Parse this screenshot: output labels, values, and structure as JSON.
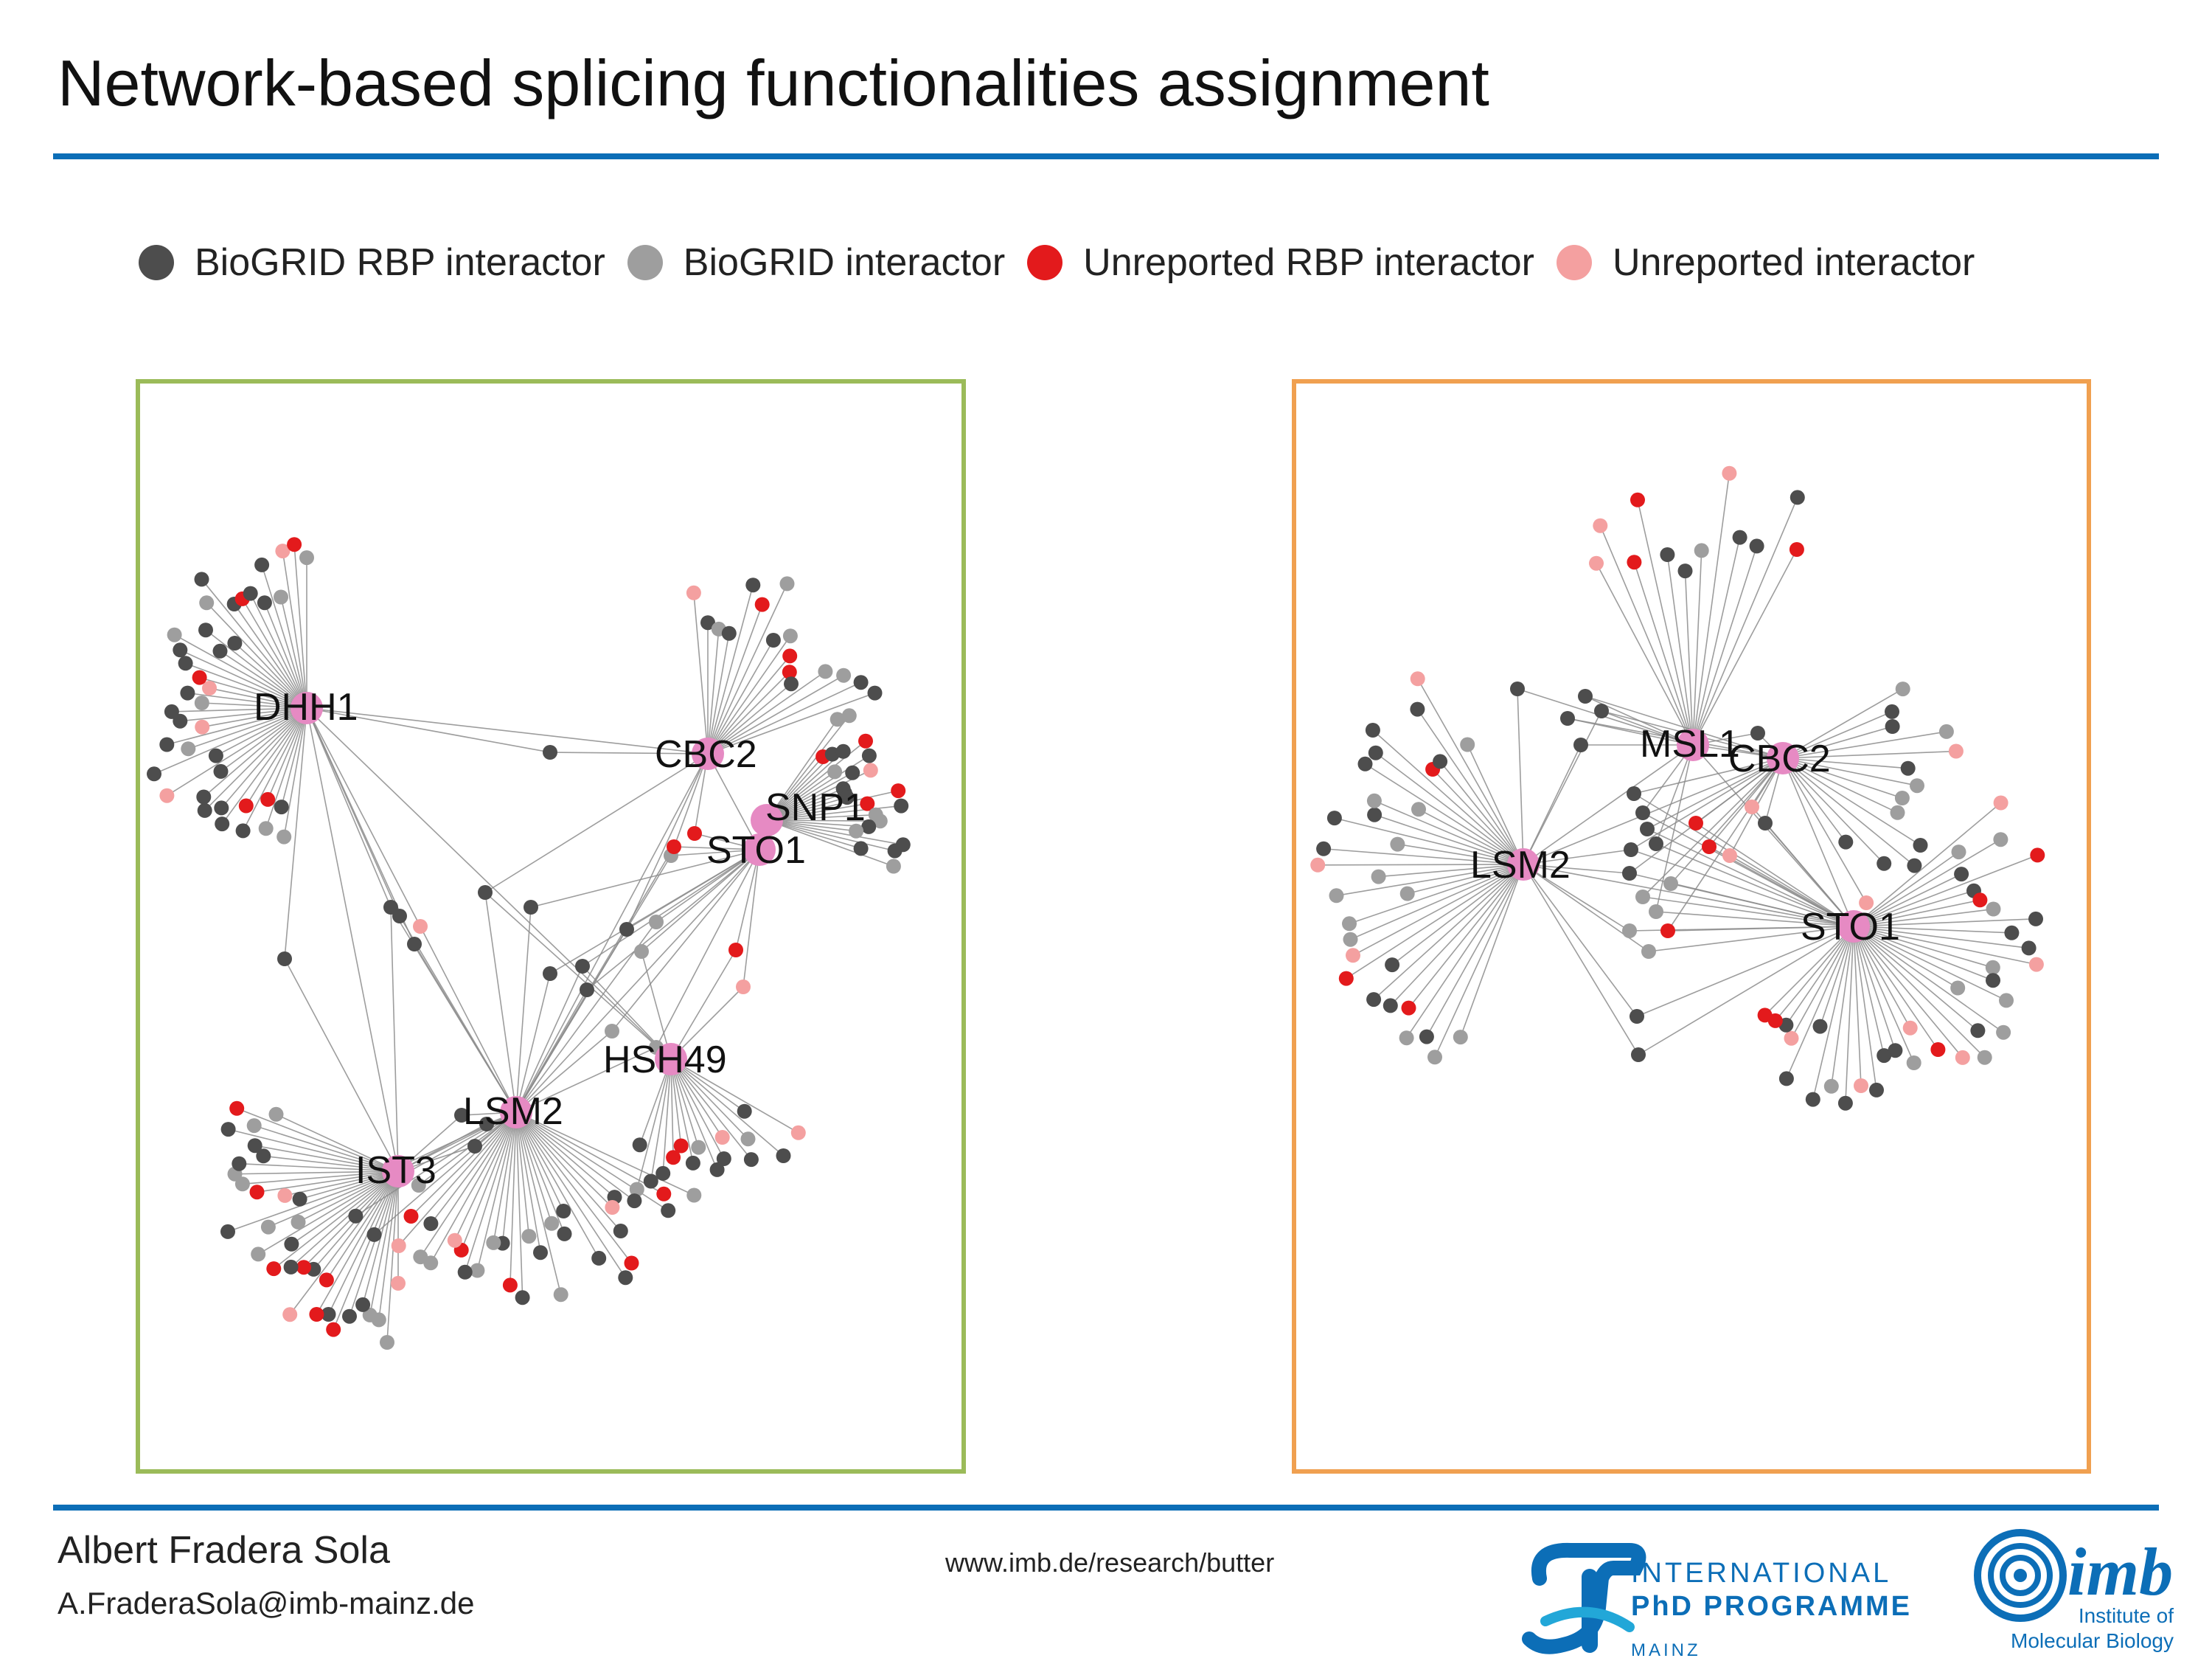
{
  "slide": {
    "title": "Network-based splicing functionalities assignment",
    "rule_color": "#0c6eb7"
  },
  "legend": [
    {
      "label": "BioGRID RBP interactor",
      "color": "#4d4d4d"
    },
    {
      "label": "BioGRID interactor",
      "color": "#9e9e9e"
    },
    {
      "label": "Unreported RBP interactor",
      "color": "#e31a1c"
    },
    {
      "label": "Unreported interactor",
      "color": "#f4a0a0"
    }
  ],
  "networks": [
    {
      "name": "left-network",
      "border_color": "#9bbb59",
      "hub_color": "#e68ac3",
      "hubs": [
        {
          "label": "DHH1",
          "type": "hub"
        },
        {
          "label": "CBC2",
          "type": "hub"
        },
        {
          "label": "SNP1",
          "type": "hub"
        },
        {
          "label": "STO1",
          "type": "hub"
        },
        {
          "label": "HSH49",
          "type": "hub"
        },
        {
          "label": "LSM2",
          "type": "hub"
        },
        {
          "label": "IST3",
          "type": "hub"
        }
      ]
    },
    {
      "name": "right-network",
      "border_color": "#f0a050",
      "hub_color": "#e68ac3",
      "hubs": [
        {
          "label": "MSL1",
          "type": "hub"
        },
        {
          "label": "CBC2",
          "type": "hub"
        },
        {
          "label": "LSM2",
          "type": "hub"
        },
        {
          "label": "STO1",
          "type": "hub"
        }
      ]
    }
  ],
  "footer": {
    "author": "Albert Fradera Sola",
    "email": "A.FraderaSola@imb-mainz.de",
    "url": "www.imb.de/research/butter",
    "ipp": {
      "line1": "INTERNATIONAL",
      "line2": "PhD PROGRAMME",
      "line3": "MAINZ"
    },
    "imb": {
      "wordmark": "imb",
      "line1": "Institute of",
      "line2": "Molecular Biology"
    }
  },
  "brand_color": "#0c6eb7"
}
